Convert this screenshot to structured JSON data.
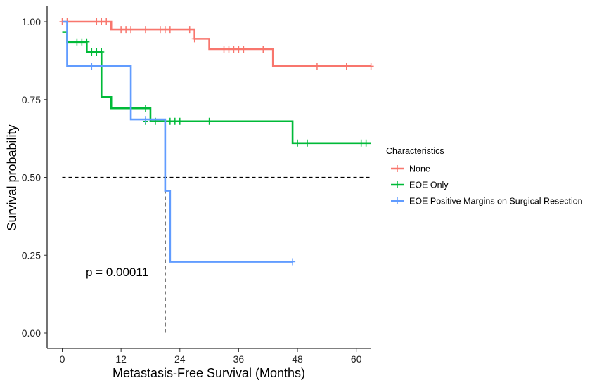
{
  "chart_data": {
    "type": "line",
    "subtype": "kaplan-meier step",
    "xlabel": "Metastasis-Free Survival (Months)",
    "ylabel": "Survival probability",
    "xlim": [
      -3,
      63
    ],
    "ylim": [
      -0.03,
      1.03
    ],
    "x_ticks": [
      0,
      12,
      24,
      36,
      48,
      60
    ],
    "y_ticks": [
      0.0,
      0.25,
      0.5,
      0.75,
      1.0
    ],
    "y_tick_labels": [
      "0.00",
      "0.25",
      "0.50",
      "0.75",
      "1.00"
    ],
    "grid": false,
    "legend_title": "Characteristics",
    "legend_position": "right",
    "annotation": "p = 0.00011",
    "reference_lines": {
      "median_survival_y": 0.5,
      "median_survival_x": 21
    },
    "series": [
      {
        "name": "None",
        "color": "#F8766D",
        "steps": [
          [
            0,
            1.0
          ],
          [
            10,
            0.975
          ],
          [
            27,
            0.945
          ],
          [
            30,
            0.912
          ],
          [
            43,
            0.857
          ],
          [
            63,
            0.857
          ]
        ],
        "censored": [
          [
            0,
            1.0
          ],
          [
            1,
            1.0
          ],
          [
            7,
            1.0
          ],
          [
            8,
            1.0
          ],
          [
            9,
            1.0
          ],
          [
            12,
            0.975
          ],
          [
            13,
            0.975
          ],
          [
            14,
            0.975
          ],
          [
            17,
            0.975
          ],
          [
            20,
            0.975
          ],
          [
            21,
            0.975
          ],
          [
            22,
            0.975
          ],
          [
            26,
            0.975
          ],
          [
            27,
            0.945
          ],
          [
            33,
            0.912
          ],
          [
            34,
            0.912
          ],
          [
            35,
            0.912
          ],
          [
            36,
            0.912
          ],
          [
            37,
            0.912
          ],
          [
            41,
            0.912
          ],
          [
            52,
            0.857
          ],
          [
            58,
            0.857
          ],
          [
            63,
            0.857
          ]
        ]
      },
      {
        "name": "EOE Only",
        "color": "#00BA38",
        "steps": [
          [
            0,
            0.967
          ],
          [
            1,
            0.935
          ],
          [
            5,
            0.903
          ],
          [
            8,
            0.758
          ],
          [
            10,
            0.722
          ],
          [
            18,
            0.68
          ],
          [
            47,
            0.61
          ],
          [
            63,
            0.61
          ]
        ],
        "censored": [
          [
            3,
            0.935
          ],
          [
            4,
            0.935
          ],
          [
            5,
            0.935
          ],
          [
            6,
            0.903
          ],
          [
            7,
            0.903
          ],
          [
            8,
            0.903
          ],
          [
            17,
            0.722
          ],
          [
            17,
            0.68
          ],
          [
            19,
            0.68
          ],
          [
            22,
            0.68
          ],
          [
            23,
            0.68
          ],
          [
            24,
            0.68
          ],
          [
            30,
            0.68
          ],
          [
            48,
            0.61
          ],
          [
            50,
            0.61
          ],
          [
            61,
            0.61
          ],
          [
            62,
            0.61
          ]
        ]
      },
      {
        "name": "EOE Positive Margins on Surgical Resection",
        "color": "#619CFF",
        "steps": [
          [
            0,
            1.0
          ],
          [
            1,
            0.857
          ],
          [
            14,
            0.686
          ],
          [
            21,
            0.457
          ],
          [
            22,
            0.229
          ],
          [
            47,
            0.229
          ]
        ],
        "censored": [
          [
            6,
            0.857
          ],
          [
            17,
            0.686
          ],
          [
            47,
            0.229
          ]
        ]
      }
    ]
  }
}
